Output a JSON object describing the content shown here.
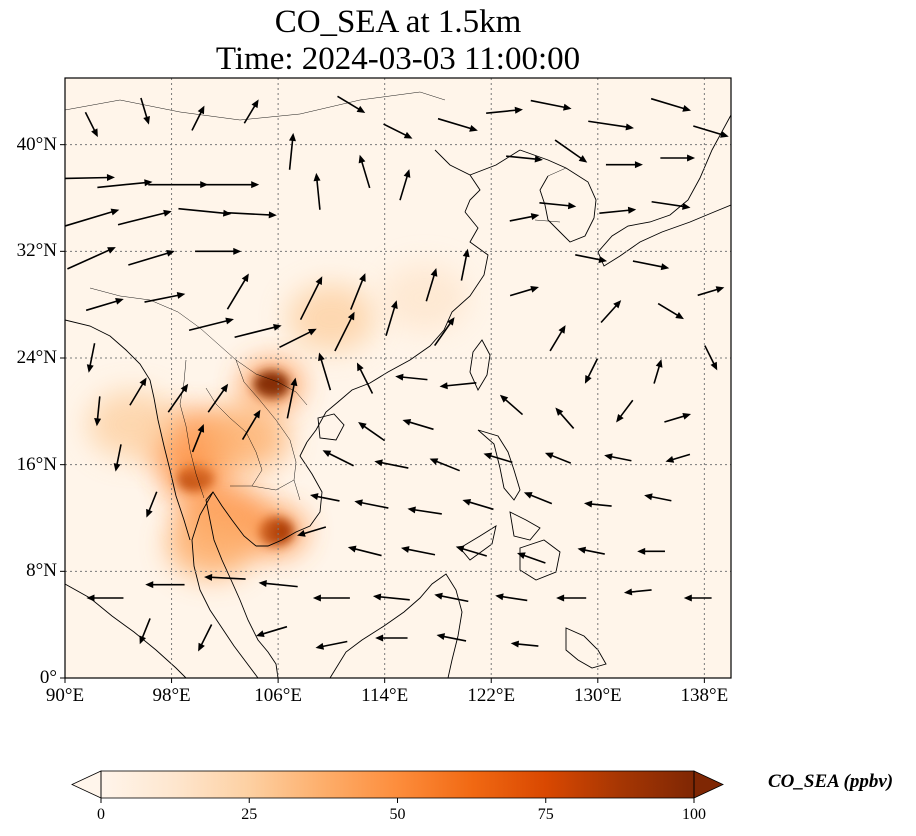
{
  "title": {
    "line1": "CO_SEA at 1.5km",
    "line2": "Time: 2024-03-03 11:00:00"
  },
  "map": {
    "projection": "PlateCarree",
    "lon_range": [
      90,
      140
    ],
    "lat_range": [
      0,
      45
    ],
    "gridlines": "dotted",
    "lon_ticks": [
      {
        "value": 90,
        "label": "90°E"
      },
      {
        "value": 98,
        "label": "98°E"
      },
      {
        "value": 106,
        "label": "106°E"
      },
      {
        "value": 114,
        "label": "114°E"
      },
      {
        "value": 122,
        "label": "122°E"
      },
      {
        "value": 130,
        "label": "130°E"
      },
      {
        "value": 138,
        "label": "138°E"
      }
    ],
    "lat_ticks": [
      {
        "value": 0,
        "label": "0°"
      },
      {
        "value": 8,
        "label": "8°N"
      },
      {
        "value": 16,
        "label": "16°N"
      },
      {
        "value": 24,
        "label": "24°N"
      },
      {
        "value": 32,
        "label": "32°N"
      },
      {
        "value": 40,
        "label": "40°N"
      }
    ],
    "background_color": "#fff5ea",
    "coastline_color": "#000000",
    "wind_arrow_color": "#000000"
  },
  "colorbar": {
    "label": "CO_SEA (ppbv)",
    "min": 0,
    "max": 100,
    "extend": "both",
    "colormap": [
      "#fff5eb",
      "#fee6ce",
      "#fdd0a2",
      "#fdae6b",
      "#fd8d3c",
      "#f16913",
      "#d94801",
      "#a63603",
      "#7f2704"
    ],
    "ticks": [
      {
        "value": 0,
        "label": "0"
      },
      {
        "value": 25,
        "label": "25"
      },
      {
        "value": 50,
        "label": "50"
      },
      {
        "value": 75,
        "label": "75"
      },
      {
        "value": 100,
        "label": "100"
      }
    ]
  },
  "co_hotspots": [
    {
      "name": "northern-vietnam",
      "lon": 105.5,
      "lat": 22.0,
      "value": 95
    },
    {
      "name": "northern-thailand",
      "lon": 99.8,
      "lat": 15.0,
      "value": 90
    },
    {
      "name": "cambodia-south-vietnam",
      "lon": 105.8,
      "lat": 11.0,
      "value": 92
    },
    {
      "name": "myanmar-thailand-plume",
      "lon": 99.5,
      "lat": 17.5,
      "value": 45
    },
    {
      "name": "laos",
      "lon": 103.5,
      "lat": 18.0,
      "value": 40
    },
    {
      "name": "south-china",
      "lon": 110.0,
      "lat": 27.0,
      "value": 30
    },
    {
      "name": "cambodia-thailand",
      "lon": 102.0,
      "lat": 12.0,
      "value": 45
    },
    {
      "name": "myanmar",
      "lon": 95.0,
      "lat": 19.0,
      "value": 20
    },
    {
      "name": "south-thailand",
      "lon": 101.0,
      "lat": 10.0,
      "value": 35
    },
    {
      "name": "east-china",
      "lon": 117.0,
      "lat": 28.5,
      "value": 18
    }
  ],
  "wind_vectors": [
    {
      "lon": 91.5,
      "lat": 37.5,
      "u": 1.0,
      "v": 0.02,
      "m": 1.0
    },
    {
      "lon": 94.5,
      "lat": 37.0,
      "u": 1.0,
      "v": 0.1,
      "m": 0.9
    },
    {
      "lon": 98.5,
      "lat": 37.0,
      "u": 1.0,
      "v": 0.0,
      "m": 1.0
    },
    {
      "lon": 102.5,
      "lat": 37.0,
      "u": 1.0,
      "v": 0.0,
      "m": 0.9
    },
    {
      "lon": 92.0,
      "lat": 34.5,
      "u": 1.0,
      "v": 0.3,
      "m": 0.95
    },
    {
      "lon": 96.0,
      "lat": 34.5,
      "u": 1.0,
      "v": 0.25,
      "m": 0.9
    },
    {
      "lon": 100.5,
      "lat": 35.0,
      "u": 1.0,
      "v": -0.1,
      "m": 0.85
    },
    {
      "lon": 104.0,
      "lat": 34.8,
      "u": 1.0,
      "v": -0.05,
      "m": 0.8
    },
    {
      "lon": 92.0,
      "lat": 31.5,
      "u": 1.0,
      "v": 0.45,
      "m": 0.85
    },
    {
      "lon": 96.5,
      "lat": 31.5,
      "u": 1.0,
      "v": 0.3,
      "m": 0.75
    },
    {
      "lon": 101.5,
      "lat": 32.0,
      "u": 1.0,
      "v": 0.0,
      "m": 0.7
    },
    {
      "lon": 93.0,
      "lat": 28.0,
      "u": 1.0,
      "v": 0.3,
      "m": 0.55
    },
    {
      "lon": 97.5,
      "lat": 28.5,
      "u": 1.0,
      "v": 0.2,
      "m": 0.6
    },
    {
      "lon": 101.0,
      "lat": 26.5,
      "u": 1.0,
      "v": 0.25,
      "m": 0.7
    },
    {
      "lon": 104.5,
      "lat": 26.0,
      "u": 1.0,
      "v": 0.25,
      "m": 0.75
    },
    {
      "lon": 103.0,
      "lat": 29.0,
      "u": 0.6,
      "v": 1.0,
      "m": 0.6
    },
    {
      "lon": 108.5,
      "lat": 28.5,
      "u": 0.5,
      "v": 1.0,
      "m": 0.75
    },
    {
      "lon": 112.0,
      "lat": 29.0,
      "u": 0.4,
      "v": 1.0,
      "m": 0.55
    },
    {
      "lon": 111.0,
      "lat": 26.0,
      "u": 0.5,
      "v": 1.0,
      "m": 0.65
    },
    {
      "lon": 107.5,
      "lat": 25.5,
      "u": 1.0,
      "v": 0.5,
      "m": 0.6
    },
    {
      "lon": 114.5,
      "lat": 27.0,
      "u": 0.3,
      "v": 1.0,
      "m": 0.5
    },
    {
      "lon": 117.5,
      "lat": 29.5,
      "u": 0.3,
      "v": 1.0,
      "m": 0.45
    },
    {
      "lon": 120.0,
      "lat": 31.0,
      "u": 0.2,
      "v": 1.0,
      "m": 0.4
    },
    {
      "lon": 118.5,
      "lat": 26.0,
      "u": 0.7,
      "v": 1.0,
      "m": 0.45
    },
    {
      "lon": 107.0,
      "lat": 39.5,
      "u": 0.1,
      "v": 1.0,
      "m": 0.5
    },
    {
      "lon": 109.0,
      "lat": 36.5,
      "u": -0.1,
      "v": 1.0,
      "m": 0.5
    },
    {
      "lon": 112.5,
      "lat": 38.0,
      "u": -0.3,
      "v": 1.0,
      "m": 0.45
    },
    {
      "lon": 115.5,
      "lat": 37.0,
      "u": 0.3,
      "v": 1.0,
      "m": 0.4
    },
    {
      "lon": 119.5,
      "lat": 41.5,
      "u": 1.0,
      "v": -0.3,
      "m": 0.6
    },
    {
      "lon": 123.0,
      "lat": 42.5,
      "u": 1.0,
      "v": 0.1,
      "m": 0.5
    },
    {
      "lon": 126.5,
      "lat": 43.0,
      "u": 1.0,
      "v": -0.2,
      "m": 0.6
    },
    {
      "lon": 131.0,
      "lat": 41.5,
      "u": 1.0,
      "v": -0.15,
      "m": 0.7
    },
    {
      "lon": 135.5,
      "lat": 43.0,
      "u": 1.0,
      "v": -0.3,
      "m": 0.6
    },
    {
      "lon": 138.5,
      "lat": 41.0,
      "u": 1.0,
      "v": -0.3,
      "m": 0.5
    },
    {
      "lon": 124.5,
      "lat": 39.0,
      "u": 1.0,
      "v": -0.1,
      "m": 0.5
    },
    {
      "lon": 128.0,
      "lat": 39.5,
      "u": 1.0,
      "v": -0.7,
      "m": 0.55
    },
    {
      "lon": 132.0,
      "lat": 38.5,
      "u": 1.0,
      "v": 0.0,
      "m": 0.5
    },
    {
      "lon": 136.0,
      "lat": 39.0,
      "u": 1.0,
      "v": 0.0,
      "m": 0.45
    },
    {
      "lon": 127.0,
      "lat": 35.5,
      "u": 1.0,
      "v": -0.1,
      "m": 0.5
    },
    {
      "lon": 131.5,
      "lat": 35.0,
      "u": 1.0,
      "v": 0.1,
      "m": 0.5
    },
    {
      "lon": 135.5,
      "lat": 35.5,
      "u": 1.0,
      "v": -0.15,
      "m": 0.55
    },
    {
      "lon": 124.5,
      "lat": 34.5,
      "u": 1.0,
      "v": 0.2,
      "m": 0.35
    },
    {
      "lon": 129.5,
      "lat": 31.5,
      "u": 1.0,
      "v": -0.2,
      "m": 0.4
    },
    {
      "lon": 134.0,
      "lat": 31.0,
      "u": 1.0,
      "v": -0.2,
      "m": 0.5
    },
    {
      "lon": 124.5,
      "lat": 29.0,
      "u": 1.0,
      "v": 0.3,
      "m": 0.35
    },
    {
      "lon": 127.0,
      "lat": 25.5,
      "u": 0.6,
      "v": 1.0,
      "m": 0.35
    },
    {
      "lon": 131.0,
      "lat": 27.5,
      "u": 0.9,
      "v": 1.0,
      "m": 0.35
    },
    {
      "lon": 135.5,
      "lat": 27.5,
      "u": 1.0,
      "v": -0.6,
      "m": 0.35
    },
    {
      "lon": 138.5,
      "lat": 29.0,
      "u": 1.0,
      "v": 0.3,
      "m": 0.3
    },
    {
      "lon": 129.5,
      "lat": 23.0,
      "u": -0.5,
      "v": -1.0,
      "m": 0.3
    },
    {
      "lon": 134.5,
      "lat": 23.0,
      "u": 0.3,
      "v": 1.0,
      "m": 0.25
    },
    {
      "lon": 138.5,
      "lat": 24.0,
      "u": 0.5,
      "v": -1.0,
      "m": 0.3
    },
    {
      "lon": 119.5,
      "lat": 22.0,
      "u": -1.0,
      "v": -0.1,
      "m": 0.5
    },
    {
      "lon": 116.0,
      "lat": 22.5,
      "u": -1.0,
      "v": 0.1,
      "m": 0.4
    },
    {
      "lon": 112.5,
      "lat": 22.5,
      "u": -0.5,
      "v": 1.0,
      "m": 0.45
    },
    {
      "lon": 109.5,
      "lat": 23.0,
      "u": -0.3,
      "v": 1.0,
      "m": 0.55
    },
    {
      "lon": 107.0,
      "lat": 21.0,
      "u": 0.2,
      "v": 1.0,
      "m": 0.6
    },
    {
      "lon": 123.5,
      "lat": 20.5,
      "u": -0.8,
      "v": 0.7,
      "m": 0.35
    },
    {
      "lon": 127.5,
      "lat": 19.5,
      "u": -0.7,
      "v": 0.8,
      "m": 0.3
    },
    {
      "lon": 132.0,
      "lat": 20.0,
      "u": -0.6,
      "v": -0.8,
      "m": 0.3
    },
    {
      "lon": 136.0,
      "lat": 19.5,
      "u": 1.0,
      "v": 0.3,
      "m": 0.3
    },
    {
      "lon": 116.5,
      "lat": 19.0,
      "u": -1.0,
      "v": 0.3,
      "m": 0.4
    },
    {
      "lon": 113.0,
      "lat": 18.5,
      "u": -1.0,
      "v": 0.7,
      "m": 0.4
    },
    {
      "lon": 110.5,
      "lat": 16.5,
      "u": -1.0,
      "v": 0.5,
      "m": 0.45
    },
    {
      "lon": 114.5,
      "lat": 16.0,
      "u": -1.0,
      "v": 0.2,
      "m": 0.45
    },
    {
      "lon": 118.5,
      "lat": 16.0,
      "u": -1.0,
      "v": 0.4,
      "m": 0.4
    },
    {
      "lon": 122.5,
      "lat": 16.5,
      "u": -1.0,
      "v": 0.3,
      "m": 0.35
    },
    {
      "lon": 127.0,
      "lat": 16.5,
      "u": -1.0,
      "v": 0.4,
      "m": 0.3
    },
    {
      "lon": 131.5,
      "lat": 16.5,
      "u": -1.0,
      "v": 0.2,
      "m": 0.3
    },
    {
      "lon": 136.0,
      "lat": 16.5,
      "u": -1.0,
      "v": -0.3,
      "m": 0.25
    },
    {
      "lon": 113.0,
      "lat": 13.0,
      "u": -1.0,
      "v": 0.2,
      "m": 0.45
    },
    {
      "lon": 117.0,
      "lat": 12.5,
      "u": -1.0,
      "v": 0.15,
      "m": 0.45
    },
    {
      "lon": 121.0,
      "lat": 13.0,
      "u": -1.0,
      "v": 0.3,
      "m": 0.4
    },
    {
      "lon": 125.5,
      "lat": 13.5,
      "u": -1.0,
      "v": 0.4,
      "m": 0.35
    },
    {
      "lon": 130.0,
      "lat": 13.0,
      "u": -1.0,
      "v": 0.1,
      "m": 0.3
    },
    {
      "lon": 134.5,
      "lat": 13.5,
      "u": -1.0,
      "v": 0.2,
      "m": 0.3
    },
    {
      "lon": 112.5,
      "lat": 9.5,
      "u": -1.0,
      "v": 0.25,
      "m": 0.45
    },
    {
      "lon": 116.5,
      "lat": 9.5,
      "u": -1.0,
      "v": 0.2,
      "m": 0.45
    },
    {
      "lon": 120.5,
      "lat": 9.5,
      "u": -1.0,
      "v": 0.3,
      "m": 0.4
    },
    {
      "lon": 125.0,
      "lat": 9.0,
      "u": -1.0,
      "v": 0.35,
      "m": 0.35
    },
    {
      "lon": 129.5,
      "lat": 9.5,
      "u": -1.0,
      "v": 0.2,
      "m": 0.3
    },
    {
      "lon": 134.0,
      "lat": 9.5,
      "u": -1.0,
      "v": 0.0,
      "m": 0.3
    },
    {
      "lon": 110.0,
      "lat": 6.0,
      "u": -1.0,
      "v": 0.0,
      "m": 0.5
    },
    {
      "lon": 114.5,
      "lat": 6.0,
      "u": -1.0,
      "v": 0.1,
      "m": 0.5
    },
    {
      "lon": 119.0,
      "lat": 6.0,
      "u": -1.0,
      "v": 0.2,
      "m": 0.45
    },
    {
      "lon": 123.5,
      "lat": 6.0,
      "u": -1.0,
      "v": 0.15,
      "m": 0.4
    },
    {
      "lon": 128.0,
      "lat": 6.0,
      "u": -1.0,
      "v": 0.0,
      "m": 0.35
    },
    {
      "lon": 133.0,
      "lat": 6.5,
      "u": -1.0,
      "v": -0.1,
      "m": 0.3
    },
    {
      "lon": 137.5,
      "lat": 6.0,
      "u": -1.0,
      "v": 0.0,
      "m": 0.3
    },
    {
      "lon": 106.0,
      "lat": 7.0,
      "u": -1.0,
      "v": 0.1,
      "m": 0.55
    },
    {
      "lon": 102.0,
      "lat": 7.5,
      "u": -1.0,
      "v": 0.05,
      "m": 0.6
    },
    {
      "lon": 97.5,
      "lat": 7.0,
      "u": -1.0,
      "v": 0.0,
      "m": 0.55
    },
    {
      "lon": 93.0,
      "lat": 6.0,
      "u": -1.0,
      "v": 0.0,
      "m": 0.5
    },
    {
      "lon": 110.0,
      "lat": 2.5,
      "u": -1.0,
      "v": -0.2,
      "m": 0.4
    },
    {
      "lon": 114.5,
      "lat": 3.0,
      "u": -1.0,
      "v": 0.0,
      "m": 0.4
    },
    {
      "lon": 119.0,
      "lat": 3.0,
      "u": -1.0,
      "v": 0.2,
      "m": 0.35
    },
    {
      "lon": 124.5,
      "lat": 2.5,
      "u": -1.0,
      "v": 0.1,
      "m": 0.3
    },
    {
      "lon": 105.5,
      "lat": 3.5,
      "u": -1.0,
      "v": -0.3,
      "m": 0.4
    },
    {
      "lon": 100.5,
      "lat": 3.0,
      "u": -0.5,
      "v": -1.0,
      "m": 0.35
    },
    {
      "lon": 96.0,
      "lat": 3.5,
      "u": -0.4,
      "v": -1.0,
      "m": 0.3
    },
    {
      "lon": 108.5,
      "lat": 11.0,
      "u": -1.0,
      "v": -0.3,
      "m": 0.35
    },
    {
      "lon": 109.5,
      "lat": 13.5,
      "u": -1.0,
      "v": 0.2,
      "m": 0.35
    },
    {
      "lon": 92.0,
      "lat": 24.0,
      "u": -0.2,
      "v": -1.0,
      "m": 0.35
    },
    {
      "lon": 92.5,
      "lat": 20.0,
      "u": -0.1,
      "v": -1.0,
      "m": 0.35
    },
    {
      "lon": 94.0,
      "lat": 16.5,
      "u": -0.2,
      "v": -1.0,
      "m": 0.3
    },
    {
      "lon": 96.5,
      "lat": 13.0,
      "u": -0.4,
      "v": -1.0,
      "m": 0.3
    },
    {
      "lon": 95.5,
      "lat": 21.5,
      "u": 0.6,
      "v": 1.0,
      "m": 0.4
    },
    {
      "lon": 98.5,
      "lat": 21.0,
      "u": 0.7,
      "v": 1.0,
      "m": 0.45
    },
    {
      "lon": 101.5,
      "lat": 21.0,
      "u": 0.7,
      "v": 1.0,
      "m": 0.45
    },
    {
      "lon": 104.0,
      "lat": 19.0,
      "u": 0.6,
      "v": 1.0,
      "m": 0.45
    },
    {
      "lon": 100.0,
      "lat": 18.0,
      "u": 0.4,
      "v": 1.0,
      "m": 0.35
    },
    {
      "lon": 92.0,
      "lat": 41.5,
      "u": 0.5,
      "v": -1.0,
      "m": 0.3
    },
    {
      "lon": 96.0,
      "lat": 42.5,
      "u": 0.3,
      "v": -1.0,
      "m": 0.3
    },
    {
      "lon": 100.0,
      "lat": 42.0,
      "u": 0.5,
      "v": 1.0,
      "m": 0.3
    },
    {
      "lon": 104.0,
      "lat": 42.5,
      "u": 0.6,
      "v": 1.0,
      "m": 0.3
    },
    {
      "lon": 111.5,
      "lat": 43.0,
      "u": 1.0,
      "v": -0.6,
      "m": 0.4
    },
    {
      "lon": 115.0,
      "lat": 41.0,
      "u": 1.0,
      "v": -0.5,
      "m": 0.4
    }
  ]
}
